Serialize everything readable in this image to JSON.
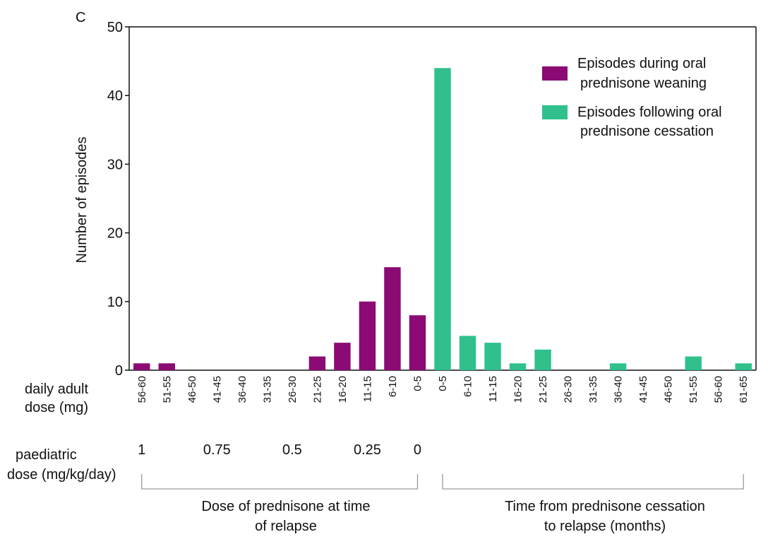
{
  "panel_label": "C",
  "chart_data": {
    "type": "bar",
    "ylabel": "Number of episodes",
    "ylim": [
      0,
      50
    ],
    "yticks": [
      0,
      10,
      20,
      30,
      40,
      50
    ],
    "grid": false,
    "legend_position": "top-right",
    "series": [
      {
        "name": "Episodes during oral prednisone weaning",
        "color": "#8b0a74",
        "categories": [
          "56-60",
          "51-55",
          "46-50",
          "41-45",
          "36-40",
          "31-35",
          "26-30",
          "21-25",
          "16-20",
          "11-15",
          "6-10",
          "0-5"
        ],
        "values": [
          1,
          1,
          0,
          0,
          0,
          0,
          0,
          2,
          4,
          10,
          15,
          8
        ]
      },
      {
        "name": "Episodes following oral prednisone cessation",
        "color": "#2fc08c",
        "categories": [
          "0-5",
          "6-10",
          "11-15",
          "16-20",
          "21-25",
          "26-30",
          "31-35",
          "36-40",
          "41-45",
          "46-50",
          "51-55",
          "56-60",
          "61-65"
        ],
        "values": [
          44,
          5,
          4,
          1,
          3,
          0,
          0,
          1,
          0,
          0,
          2,
          0,
          1
        ]
      }
    ],
    "legend_lines": [
      [
        "Episodes during oral",
        "prednisone weaning"
      ],
      [
        "Episodes following oral",
        "prednisone cessation"
      ]
    ],
    "adult_dose_label": [
      "daily adult",
      "dose (mg)"
    ],
    "paediatric_label": [
      "paediatric",
      "dose (mg/kg/day)"
    ],
    "paediatric_ticks": [
      {
        "label": "1",
        "category_index": 0
      },
      {
        "label": "0.75",
        "category_index": 3
      },
      {
        "label": "0.5",
        "category_index": 6
      },
      {
        "label": "0.25",
        "category_index": 9
      },
      {
        "label": "0",
        "category_index": 11
      }
    ],
    "group_labels": [
      [
        "Dose of prednisone at time",
        "of relapse"
      ],
      [
        "Time from prednisone cessation",
        "to relapse (months)"
      ]
    ]
  }
}
